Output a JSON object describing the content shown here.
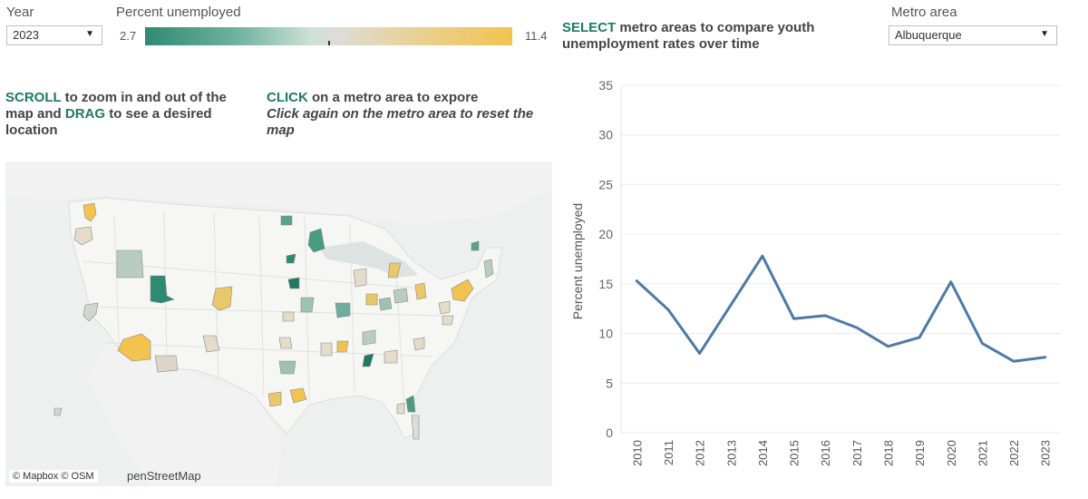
{
  "filters": {
    "year_label": "Year",
    "year_value": "2023",
    "percent_label": "Percent unemployed",
    "legend_min": "2.7",
    "legend_max": "11.4",
    "metro_label": "Metro area",
    "metro_value": "Albuquerque"
  },
  "select_instruction": {
    "keyword": "SELECT",
    "text": " metro areas to compare youth unemployment rates over time"
  },
  "scroll_instruction": {
    "kw1": "SCROLL",
    "t1": " to zoom in and out of the map and ",
    "kw2": "DRAG",
    "t2": " to see a desired location"
  },
  "click_instruction": {
    "kw": "CLICK",
    "t1": " on a metro area to expore",
    "t2": "Click again on the metro area to reset the map"
  },
  "map": {
    "attribution": "© Mapbox  © OSM",
    "osm_text": "penStreetMap"
  },
  "colors": {
    "line": "#4e79a7",
    "teal": "#1f7a62",
    "gold": "#f2c34e"
  },
  "chart_data": {
    "type": "line",
    "title": "",
    "xlabel": "",
    "ylabel": "Percent unemployed",
    "ylim": [
      0,
      35
    ],
    "yticks": [
      0,
      5,
      10,
      15,
      20,
      25,
      30,
      35
    ],
    "categories": [
      "2010",
      "2011",
      "2012",
      "2013",
      "2014",
      "2015",
      "2016",
      "2017",
      "2018",
      "2019",
      "2020",
      "2021",
      "2022",
      "2023"
    ],
    "series": [
      {
        "name": "Albuquerque",
        "values": [
          15.3,
          12.4,
          8.0,
          12.9,
          17.8,
          11.5,
          11.8,
          10.6,
          8.7,
          9.6,
          15.2,
          9.0,
          7.2,
          7.6
        ]
      }
    ]
  }
}
